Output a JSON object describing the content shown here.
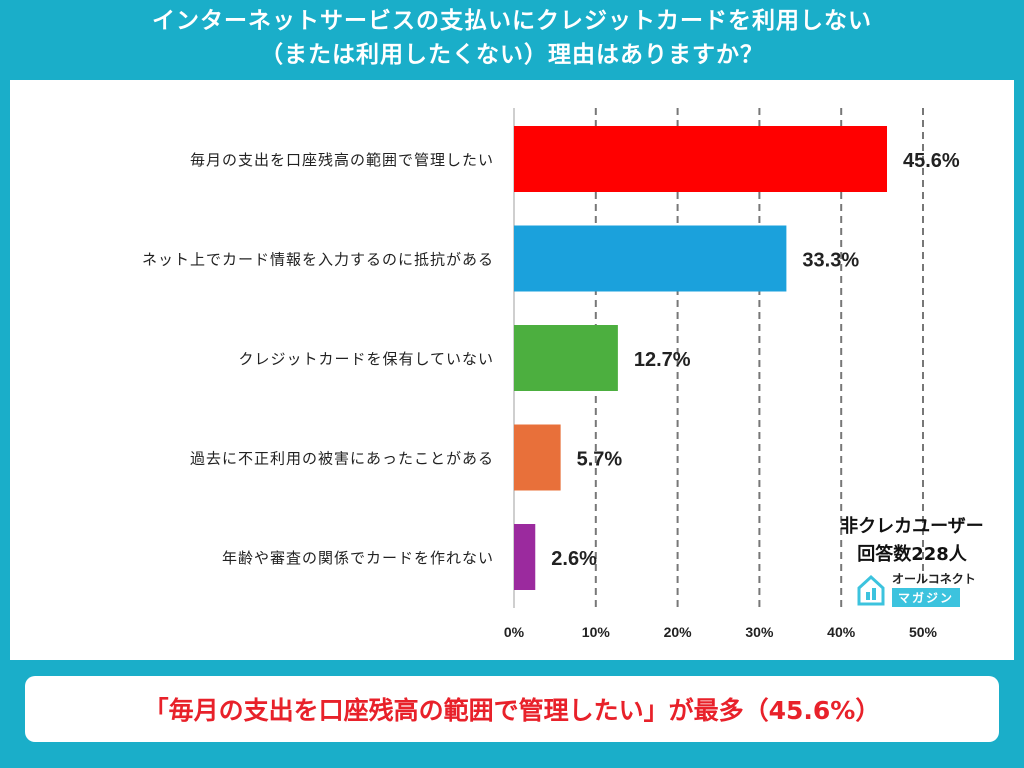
{
  "header": {
    "title_line1": "インターネットサービスの支払いにクレジットカードを利用しない",
    "title_line2": "（または利用したくない）理由はありますか？"
  },
  "chart_data": {
    "type": "bar",
    "orientation": "horizontal",
    "categories": [
      "毎月の支出を口座残高の範囲で管理したい",
      "ネット上でカード情報を入力するのに抵抗がある",
      "クレジットカードを保有していない",
      "過去に不正利用の被害にあったことがある",
      "年齢や審査の関係でカードを作れない"
    ],
    "values": [
      45.6,
      33.3,
      12.7,
      5.7,
      2.6
    ],
    "value_labels": [
      "45.6%",
      "33.3%",
      "12.7%",
      "5.7%",
      "2.6%"
    ],
    "colors": [
      "#ff0000",
      "#1ba1dc",
      "#4caf3f",
      "#e8703a",
      "#9b2a9e"
    ],
    "xlim": [
      0,
      50
    ],
    "xticks": [
      "0%",
      "10%",
      "20%",
      "30%",
      "40%",
      "50%"
    ],
    "xtick_values": [
      0,
      10,
      20,
      30,
      40,
      50
    ],
    "grid": "vertical dashed",
    "note_line1": "非クレカユーザー",
    "note_line2": "回答数228人"
  },
  "logo": {
    "name": "オールコネクト",
    "badge": "マガジン",
    "icon": "house-logo-icon"
  },
  "footer": {
    "summary": "「毎月の支出を口座残高の範囲で管理したい」が最多（45.6%）"
  },
  "colors": {
    "background": "#1aaec9",
    "panel": "#ffffff",
    "summary_text": "#e8212a"
  }
}
